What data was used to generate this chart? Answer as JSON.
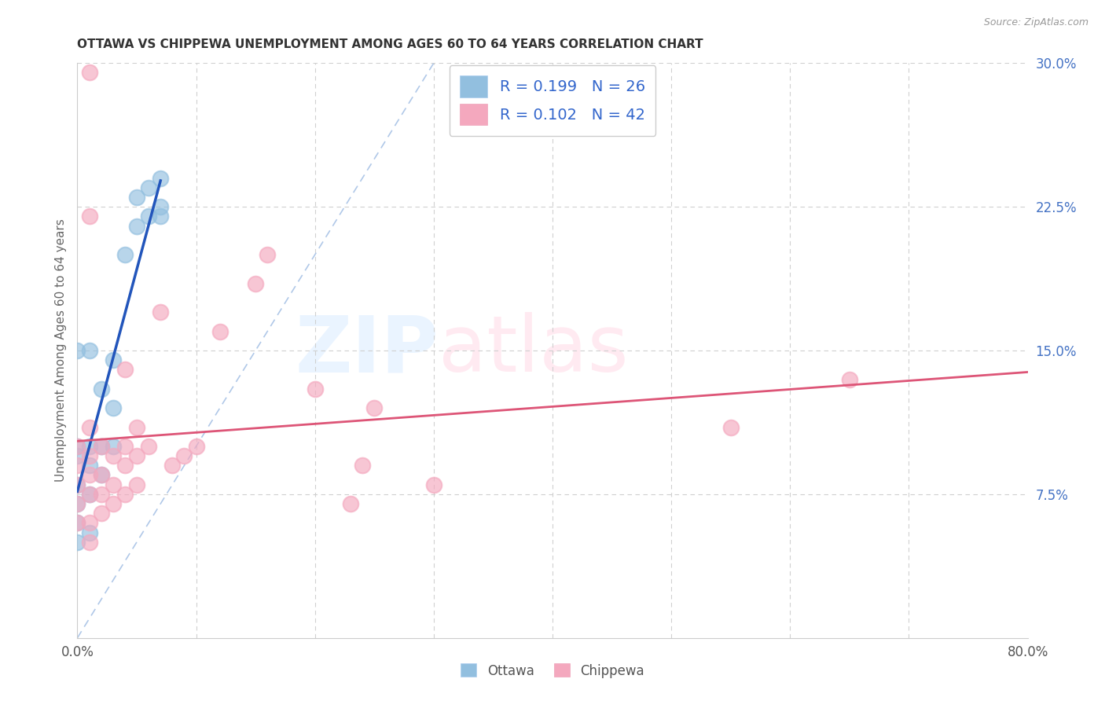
{
  "title": "OTTAWA VS CHIPPEWA UNEMPLOYMENT AMONG AGES 60 TO 64 YEARS CORRELATION CHART",
  "source": "Source: ZipAtlas.com",
  "ylabel": "Unemployment Among Ages 60 to 64 years",
  "xlim": [
    0.0,
    0.8
  ],
  "ylim": [
    0.0,
    0.3
  ],
  "yticks_right": [
    0.075,
    0.15,
    0.225,
    0.3
  ],
  "ytick_labels_right": [
    "7.5%",
    "15.0%",
    "22.5%",
    "30.0%"
  ],
  "ottawa_color": "#92bfdf",
  "chippewa_color": "#f4a8be",
  "ottawa_line_color": "#2255bb",
  "chippewa_line_color": "#dd5577",
  "diagonal_color": "#b0c8e8",
  "legend_text_color": "#3366cc",
  "background_color": "#ffffff",
  "grid_color": "#d0d0d0",
  "ottawa_x": [
    0.0,
    0.0,
    0.0,
    0.0,
    0.0,
    0.0,
    0.0,
    0.01,
    0.01,
    0.01,
    0.01,
    0.01,
    0.02,
    0.02,
    0.02,
    0.03,
    0.03,
    0.03,
    0.04,
    0.05,
    0.05,
    0.06,
    0.06,
    0.07,
    0.07,
    0.07
  ],
  "ottawa_y": [
    0.05,
    0.06,
    0.07,
    0.08,
    0.095,
    0.1,
    0.15,
    0.055,
    0.075,
    0.09,
    0.1,
    0.15,
    0.085,
    0.1,
    0.13,
    0.1,
    0.12,
    0.145,
    0.2,
    0.215,
    0.23,
    0.22,
    0.235,
    0.22,
    0.225,
    0.24
  ],
  "chippewa_x": [
    0.0,
    0.0,
    0.0,
    0.0,
    0.0,
    0.01,
    0.01,
    0.01,
    0.01,
    0.01,
    0.01,
    0.02,
    0.02,
    0.02,
    0.02,
    0.03,
    0.03,
    0.03,
    0.04,
    0.04,
    0.04,
    0.04,
    0.05,
    0.05,
    0.05,
    0.06,
    0.07,
    0.08,
    0.09,
    0.1,
    0.12,
    0.15,
    0.16,
    0.2,
    0.23,
    0.24,
    0.25,
    0.3,
    0.01,
    0.01,
    0.55,
    0.65
  ],
  "chippewa_y": [
    0.06,
    0.07,
    0.08,
    0.09,
    0.1,
    0.05,
    0.06,
    0.075,
    0.085,
    0.095,
    0.11,
    0.065,
    0.075,
    0.085,
    0.1,
    0.07,
    0.08,
    0.095,
    0.075,
    0.09,
    0.1,
    0.14,
    0.08,
    0.095,
    0.11,
    0.1,
    0.17,
    0.09,
    0.095,
    0.1,
    0.16,
    0.185,
    0.2,
    0.13,
    0.07,
    0.09,
    0.12,
    0.08,
    0.295,
    0.22,
    0.11,
    0.135
  ]
}
